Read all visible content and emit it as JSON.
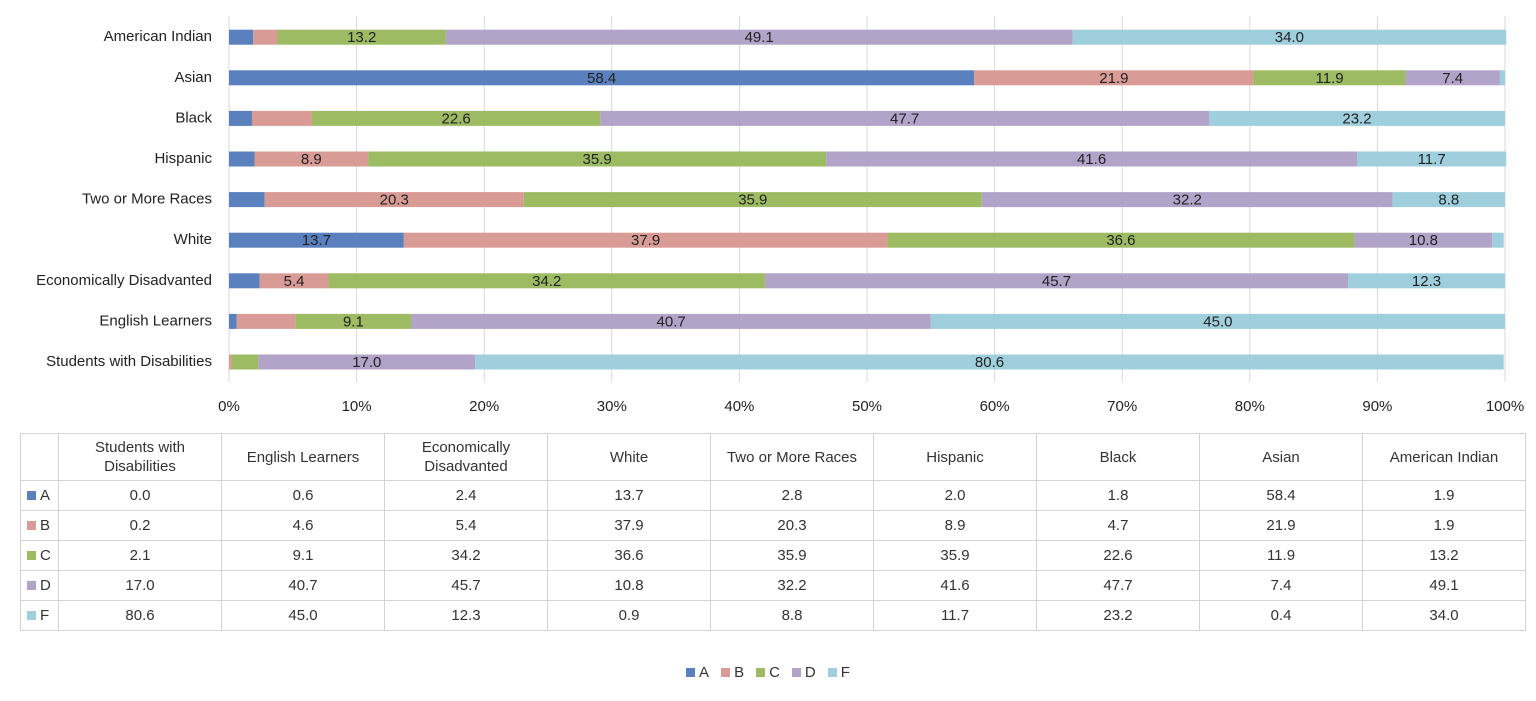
{
  "chart_data": {
    "type": "stacked-bar-100",
    "orientation": "horizontal",
    "categories": [
      "Students with Disabilities",
      "English Learners",
      "Economically Disadvanted",
      "White",
      "Two or More Races",
      "Hispanic",
      "Black",
      "Asian",
      "American Indian"
    ],
    "series": [
      {
        "name": "A",
        "color": "#5a80be",
        "values": [
          0.0,
          0.6,
          2.4,
          13.7,
          2.8,
          2.0,
          1.8,
          58.4,
          1.9
        ],
        "value_labels": [
          "0.0",
          "0.6",
          "2.4",
          "13.7",
          "2.8",
          "2.0",
          "1.8",
          "58.4",
          "1.9"
        ]
      },
      {
        "name": "B",
        "color": "#d89b96",
        "values": [
          0.2,
          4.6,
          5.4,
          37.9,
          20.3,
          8.9,
          4.7,
          21.9,
          1.9
        ],
        "value_labels": [
          "0.2",
          "4.6",
          "5.4",
          "37.9",
          "20.3",
          "8.9",
          "4.7",
          "21.9",
          "1.9"
        ]
      },
      {
        "name": "C",
        "color": "#9dbb63",
        "values": [
          2.1,
          9.1,
          34.2,
          36.6,
          35.9,
          35.9,
          22.6,
          11.9,
          13.2
        ],
        "value_labels": [
          "2.1",
          "9.1",
          "34.2",
          "36.6",
          "35.9",
          "35.9",
          "22.6",
          "11.9",
          "13.2"
        ]
      },
      {
        "name": "D",
        "color": "#b2a3c8",
        "values": [
          17.0,
          40.7,
          45.7,
          10.8,
          32.2,
          41.6,
          47.7,
          7.4,
          49.1
        ],
        "value_labels": [
          "17.0",
          "40.7",
          "45.7",
          "10.8",
          "32.2",
          "41.6",
          "47.7",
          "7.4",
          "49.1"
        ]
      },
      {
        "name": "F",
        "color": "#9fcfdd",
        "values": [
          80.6,
          45.0,
          12.3,
          0.9,
          8.8,
          11.7,
          23.2,
          0.4,
          34.0
        ],
        "value_labels": [
          "80.6",
          "45.0",
          "12.3",
          "0.9",
          "8.8",
          "11.7",
          "23.2",
          "0.4",
          "34.0"
        ]
      }
    ],
    "xlim": [
      0,
      100
    ],
    "xticks": [
      {
        "value": 0,
        "label": "0%"
      },
      {
        "value": 10,
        "label": "10%"
      },
      {
        "value": 20,
        "label": "20%"
      },
      {
        "value": 30,
        "label": "30%"
      },
      {
        "value": 40,
        "label": "40%"
      },
      {
        "value": 50,
        "label": "50%"
      },
      {
        "value": 60,
        "label": "60%"
      },
      {
        "value": 70,
        "label": "70%"
      },
      {
        "value": 80,
        "label": "80%"
      },
      {
        "value": 90,
        "label": "90%"
      },
      {
        "value": 100,
        "label": "100%"
      }
    ],
    "grid": true,
    "legend": "bottom",
    "data_table": true
  }
}
